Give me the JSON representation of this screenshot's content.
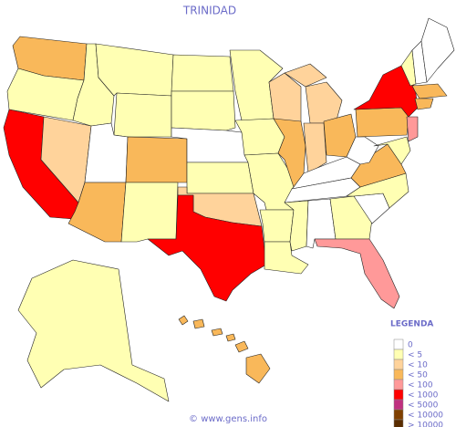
{
  "title": "TRINIDAD",
  "legend": {
    "title": "LEGENDA",
    "items": [
      {
        "label": "0",
        "color": "#ffffff"
      },
      {
        "label": "< 5",
        "color": "#ffffb3"
      },
      {
        "label": "< 10",
        "color": "#ffd39b"
      },
      {
        "label": "< 50",
        "color": "#f9b85a"
      },
      {
        "label": "< 100",
        "color": "#ff9999"
      },
      {
        "label": "< 1000",
        "color": "#ff0000"
      },
      {
        "label": "< 5000",
        "color": "#c03080"
      },
      {
        "label": "< 10000",
        "color": "#804000"
      },
      {
        "label": "> 10000",
        "color": "#5a2d00"
      }
    ]
  },
  "footer": "© www.gens.info"
}
